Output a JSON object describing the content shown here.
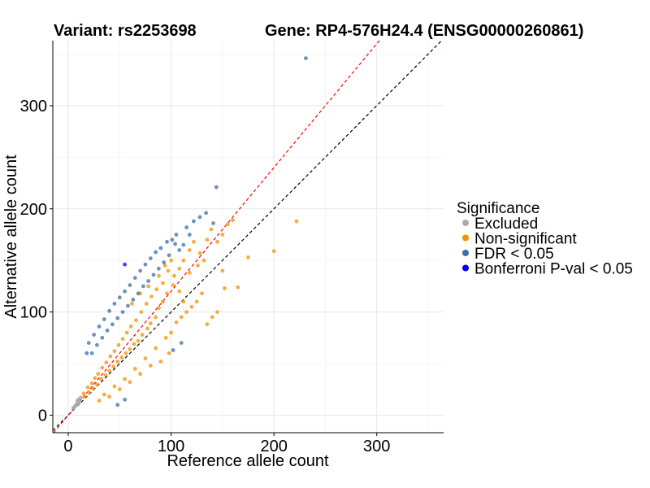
{
  "header": {
    "variant_label": "Variant: rs2253698",
    "gene_label": "Gene: RP4-576H24.4 (ENSG00000260861)"
  },
  "chart_data": {
    "type": "scatter",
    "xlabel": "Reference allele count",
    "ylabel": "Alternative allele count",
    "xlim": [
      -15,
      365
    ],
    "ylim": [
      -17,
      363
    ],
    "x_ticks": [
      0,
      100,
      200,
      300
    ],
    "y_ticks": [
      0,
      100,
      200,
      300
    ],
    "x_tick_labels": [
      "0",
      "100",
      "200",
      "300"
    ],
    "y_tick_labels": [
      "0",
      "100",
      "200",
      "300"
    ],
    "grid": true,
    "reference_lines": [
      {
        "name": "y = x",
        "slope": 1.0,
        "intercept": 0,
        "color": "#000000",
        "style": "dashed"
      },
      {
        "name": "fitted",
        "slope": 1.2,
        "intercept": 0,
        "color": "#ff0000",
        "style": "dashed"
      }
    ],
    "legend": {
      "title": "Significance",
      "position": "right",
      "entries": [
        {
          "label": "Excluded",
          "color": "#aaaaaa"
        },
        {
          "label": "Non-significant",
          "color": "#f39200"
        },
        {
          "label": "FDR < 0.05",
          "color": "#3a6fa8"
        },
        {
          "label": "Bonferroni P-val < 0.05",
          "color": "#0000ee"
        }
      ]
    },
    "series": [
      {
        "name": "Excluded",
        "color": "#aaaaaa",
        "points": [
          [
            8,
            10
          ],
          [
            9,
            12
          ],
          [
            10,
            15
          ],
          [
            6,
            8
          ],
          [
            11,
            13
          ],
          [
            7,
            9
          ],
          [
            12,
            17
          ],
          [
            9,
            14
          ],
          [
            5,
            7
          ],
          [
            10,
            11
          ]
        ]
      },
      {
        "name": "Non-significant",
        "color": "#f39200",
        "points": [
          [
            222,
            188
          ],
          [
            200,
            159
          ],
          [
            175,
            153
          ],
          [
            165,
            124
          ],
          [
            152,
            123
          ],
          [
            160,
            189
          ],
          [
            155,
            185
          ],
          [
            150,
            175
          ],
          [
            145,
            168
          ],
          [
            139,
            180
          ],
          [
            135,
            170
          ],
          [
            128,
            157
          ],
          [
            122,
            168
          ],
          [
            118,
            160
          ],
          [
            112,
            150
          ],
          [
            108,
            142
          ],
          [
            102,
            126
          ],
          [
            96,
            118
          ],
          [
            92,
            110
          ],
          [
            88,
            104
          ],
          [
            85,
            95
          ],
          [
            80,
            89
          ],
          [
            77,
            84
          ],
          [
            72,
            78
          ],
          [
            68,
            72
          ],
          [
            64,
            69
          ],
          [
            60,
            64
          ],
          [
            56,
            60
          ],
          [
            52,
            56
          ],
          [
            48,
            52
          ],
          [
            44,
            47
          ],
          [
            40,
            43
          ],
          [
            36,
            39
          ],
          [
            32,
            35
          ],
          [
            28,
            30
          ],
          [
            24,
            26
          ],
          [
            20,
            22
          ],
          [
            16,
            18
          ],
          [
            30,
            14
          ],
          [
            35,
            20
          ],
          [
            45,
            28
          ],
          [
            55,
            35
          ],
          [
            65,
            45
          ],
          [
            75,
            55
          ],
          [
            85,
            65
          ],
          [
            95,
            75
          ],
          [
            100,
            80
          ],
          [
            105,
            90
          ],
          [
            110,
            95
          ],
          [
            115,
            100
          ],
          [
            120,
            105
          ],
          [
            125,
            110
          ],
          [
            130,
            118
          ],
          [
            98,
            60
          ],
          [
            90,
            52
          ],
          [
            80,
            48
          ],
          [
            70,
            40
          ],
          [
            60,
            32
          ],
          [
            50,
            25
          ],
          [
            40,
            18
          ],
          [
            112,
            110
          ],
          [
            108,
            120
          ],
          [
            103,
            135
          ],
          [
            97,
            140
          ],
          [
            92,
            128
          ],
          [
            86,
            122
          ],
          [
            81,
            115
          ],
          [
            76,
            108
          ],
          [
            71,
            100
          ],
          [
            66,
            92
          ],
          [
            61,
            86
          ],
          [
            57,
            80
          ],
          [
            53,
            74
          ],
          [
            49,
            68
          ],
          [
            45,
            62
          ],
          [
            41,
            57
          ],
          [
            37,
            51
          ],
          [
            33,
            46
          ],
          [
            29,
            40
          ],
          [
            26,
            36
          ],
          [
            23,
            31
          ],
          [
            19,
            27
          ],
          [
            15,
            21
          ],
          [
            140,
            95
          ],
          [
            145,
            100
          ],
          [
            135,
            88
          ],
          [
            150,
            140
          ],
          [
            62,
            108
          ],
          [
            70,
            118
          ],
          [
            78,
            125
          ],
          [
            88,
            135
          ],
          [
            94,
            145
          ],
          [
            100,
            150
          ],
          [
            118,
            138
          ],
          [
            126,
            145
          ],
          [
            132,
            150
          ]
        ]
      },
      {
        "name": "FDR < 0.05",
        "color": "#3a6fa8",
        "points": [
          [
            231,
            346
          ],
          [
            144,
            221
          ],
          [
            134,
            196
          ],
          [
            141,
            186
          ],
          [
            96,
            168
          ],
          [
            101,
            170
          ],
          [
            90,
            162
          ],
          [
            85,
            158
          ],
          [
            80,
            152
          ],
          [
            75,
            146
          ],
          [
            70,
            140
          ],
          [
            65,
            133
          ],
          [
            60,
            126
          ],
          [
            55,
            120
          ],
          [
            50,
            114
          ],
          [
            45,
            108
          ],
          [
            40,
            101
          ],
          [
            35,
            93
          ],
          [
            30,
            86
          ],
          [
            25,
            78
          ],
          [
            20,
            70
          ],
          [
            18,
            60
          ],
          [
            104,
            166
          ],
          [
            108,
            160
          ],
          [
            112,
            165
          ],
          [
            118,
            175
          ],
          [
            98,
            155
          ],
          [
            93,
            148
          ],
          [
            88,
            142
          ],
          [
            83,
            136
          ],
          [
            78,
            130
          ],
          [
            73,
            125
          ],
          [
            68,
            118
          ],
          [
            63,
            112
          ],
          [
            58,
            106
          ],
          [
            53,
            100
          ],
          [
            48,
            94
          ],
          [
            43,
            88
          ],
          [
            38,
            82
          ],
          [
            33,
            75
          ],
          [
            28,
            68
          ],
          [
            23,
            60
          ],
          [
            128,
            192
          ],
          [
            122,
            188
          ],
          [
            115,
            182
          ],
          [
            105,
            175
          ],
          [
            110,
            70
          ],
          [
            102,
            63
          ],
          [
            48,
            10
          ],
          [
            55,
            15
          ]
        ]
      },
      {
        "name": "Bonferroni P-val < 0.05",
        "color": "#0000ee",
        "points": [
          [
            55,
            146
          ]
        ]
      }
    ]
  }
}
